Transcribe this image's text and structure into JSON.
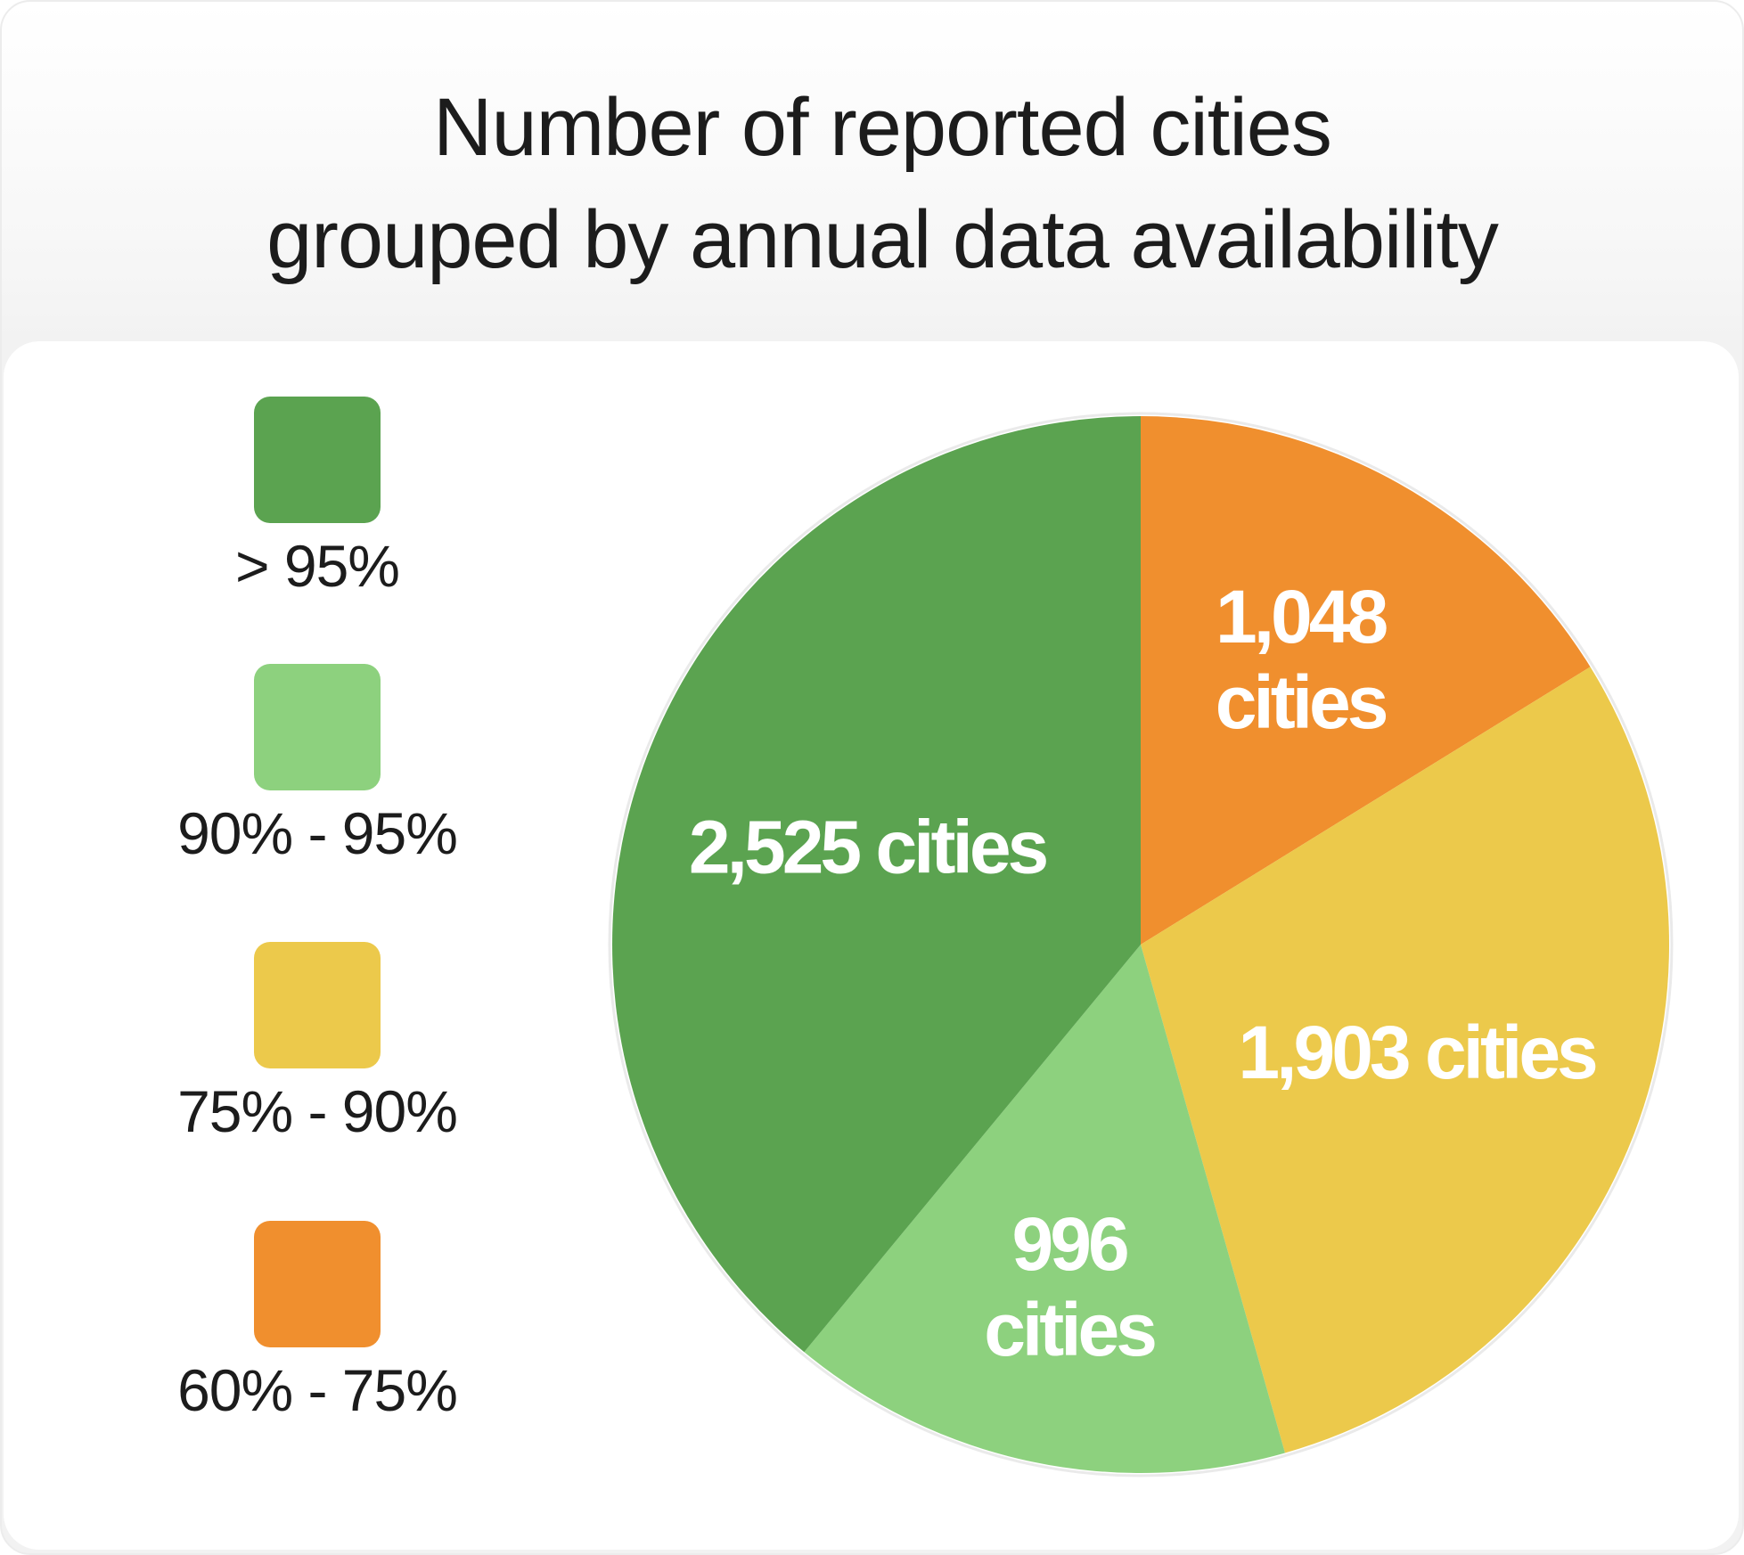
{
  "chart_data": {
    "type": "pie",
    "title": "Number of reported cities grouped by annual data availability",
    "title_lines": [
      "Number of reported cities",
      "grouped by annual data availability"
    ],
    "legend_position": "left",
    "slices": [
      {
        "name": "60% - 75%",
        "value": 1048,
        "label_lines": [
          "1,048",
          "cities"
        ],
        "color": "#F08F2E"
      },
      {
        "name": "75% - 90%",
        "value": 1903,
        "label_lines": [
          "1,903 cities"
        ],
        "color": "#ECC94B"
      },
      {
        "name": "90% - 95%",
        "value": 996,
        "label_lines": [
          "996",
          "cities"
        ],
        "color": "#8DD17E"
      },
      {
        "name": "> 95%",
        "value": 2525,
        "label_lines": [
          "2,525 cities"
        ],
        "color": "#5BA350"
      }
    ],
    "legend": [
      {
        "label": "> 95%",
        "color": "#5BA350"
      },
      {
        "label": "90% - 95%",
        "color": "#8DD17E"
      },
      {
        "label": "75% - 90%",
        "color": "#ECC94B"
      },
      {
        "label": "60% - 75%",
        "color": "#F08F2E"
      }
    ]
  }
}
